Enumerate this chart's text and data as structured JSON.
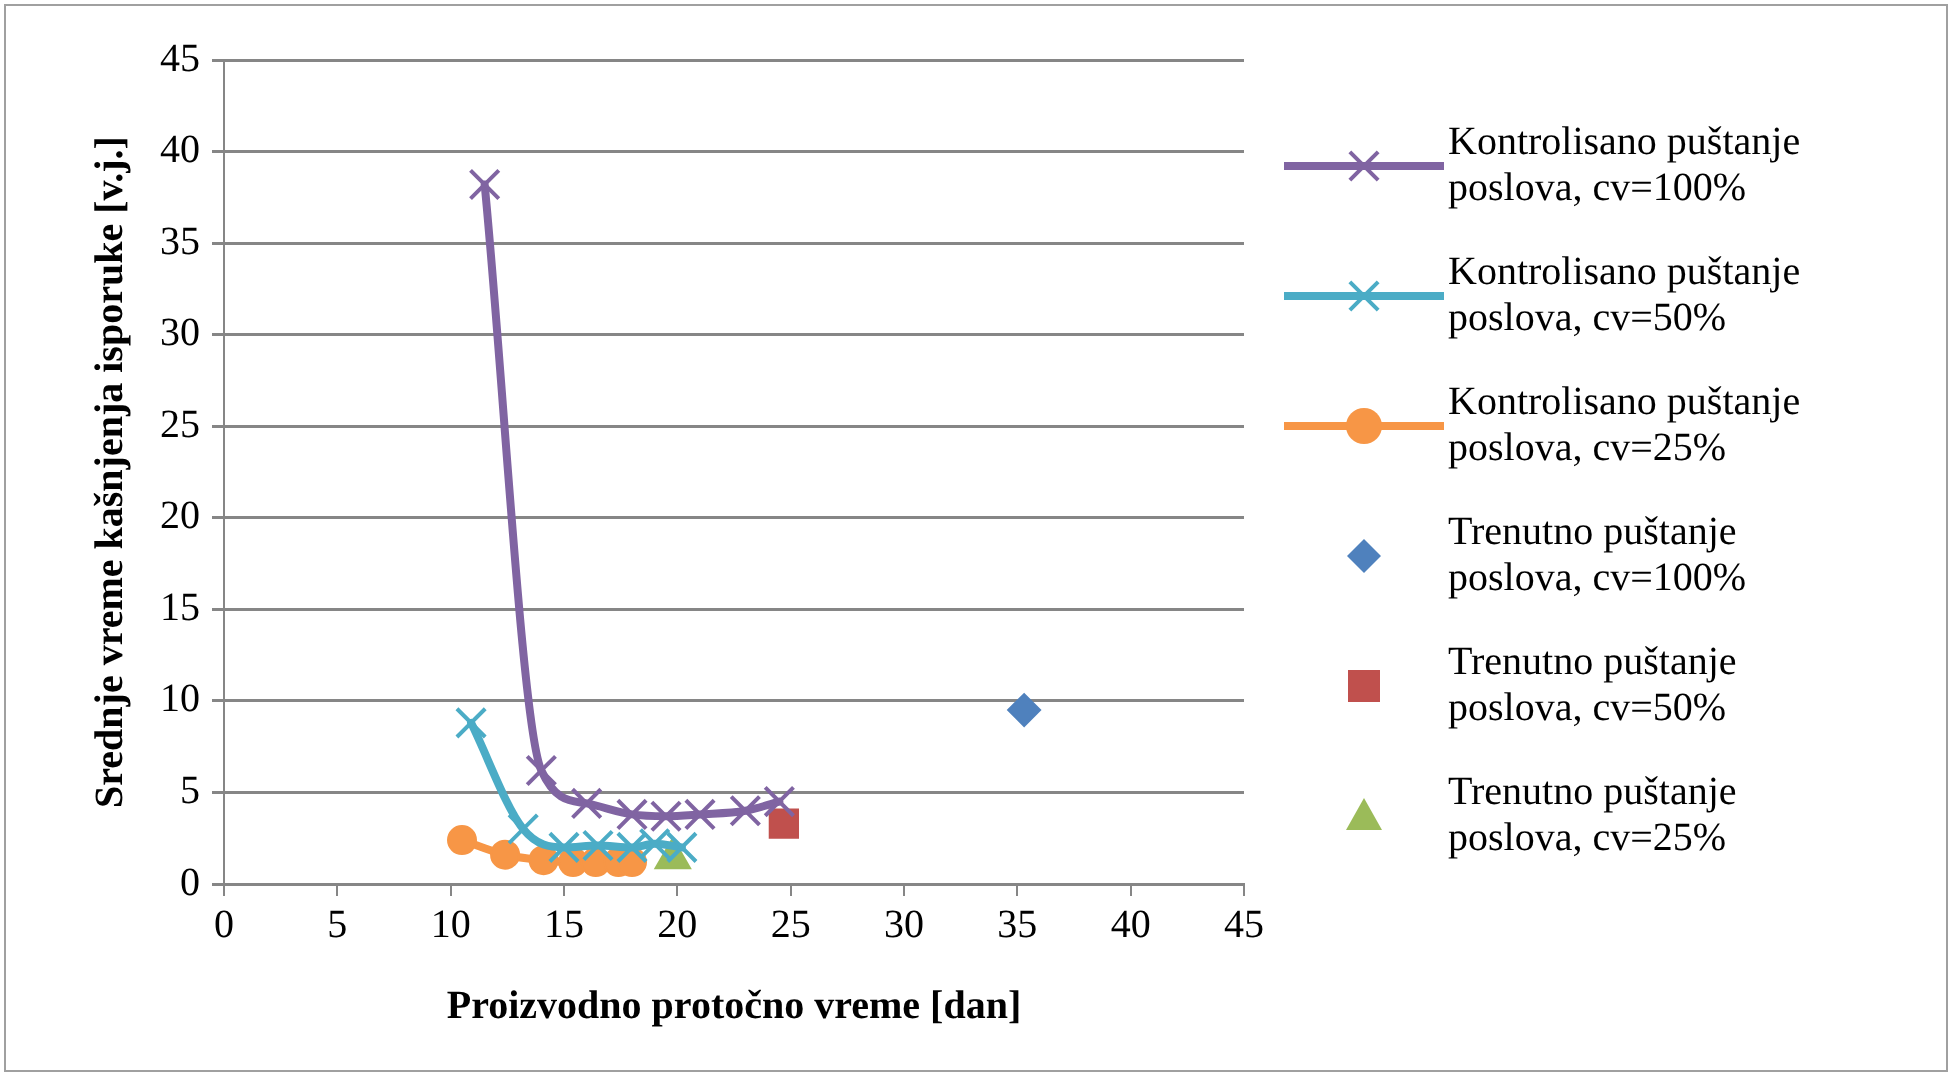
{
  "chart_data": {
    "type": "line",
    "xlabel": "Proizvodno protočno vreme [dan]",
    "ylabel": "Srednje vreme kašnjenja isporuke [v.j.]",
    "xlim": [
      0,
      45
    ],
    "xticks": [
      0,
      5,
      10,
      15,
      20,
      25,
      30,
      35,
      40,
      45
    ],
    "ylim": [
      0,
      45
    ],
    "yticks": [
      0,
      5,
      10,
      15,
      20,
      25,
      30,
      35,
      40,
      45
    ],
    "grid": "y",
    "legend": "right",
    "series": [
      {
        "name": "Kontrolisano puštanje poslova, cv=100%",
        "type": "line",
        "marker": "cross",
        "color": "#8064a2",
        "x": [
          11.5,
          14,
          16,
          18,
          19.5,
          21,
          23,
          24.5
        ],
        "values": [
          38.2,
          6.2,
          4.4,
          3.8,
          3.7,
          3.8,
          4.0,
          4.5
        ]
      },
      {
        "name": "Kontrolisano puštanje poslova, cv=50%",
        "type": "line",
        "marker": "cross",
        "color": "#4bacc6",
        "x": [
          10.9,
          13.2,
          15,
          16.5,
          18,
          19,
          20.2
        ],
        "values": [
          8.8,
          3.0,
          2.0,
          2.1,
          2.0,
          2.2,
          2.0
        ]
      },
      {
        "name": "Kontrolisano puštanje poslova, cv=25%",
        "type": "line",
        "marker": "circle",
        "color": "#f79646",
        "x": [
          10.5,
          12.4,
          14.1,
          15.4,
          16.4,
          17.4,
          18
        ],
        "values": [
          2.4,
          1.6,
          1.3,
          1.2,
          1.2,
          1.2,
          1.2
        ]
      },
      {
        "name": "Trenutno puštanje poslova, cv=100%",
        "type": "scatter",
        "marker": "diamond",
        "color": "#4f81bd",
        "x": [
          35.3
        ],
        "values": [
          9.5
        ]
      },
      {
        "name": "Trenutno puštanje poslova, cv=50%",
        "type": "scatter",
        "marker": "square",
        "color": "#c0504d",
        "x": [
          24.7
        ],
        "values": [
          3.3
        ]
      },
      {
        "name": "Trenutno puštanje poslova, cv=25%",
        "type": "scatter",
        "marker": "triangle",
        "color": "#9bbb59",
        "x": [
          19.8
        ],
        "values": [
          1.4
        ]
      }
    ]
  }
}
